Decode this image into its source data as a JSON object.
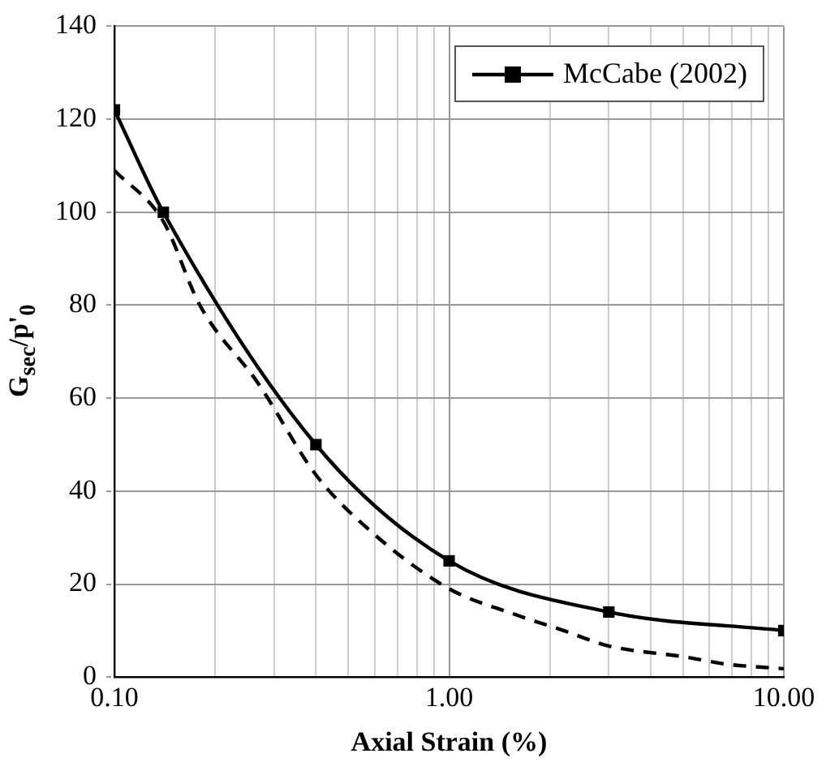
{
  "chart_data": {
    "type": "line",
    "xlabel": "Axial Strain (%)",
    "ylabel": "G$_{sec}$/p'$_{0}$",
    "log": "x",
    "grid": true,
    "legend": "top right",
    "xlim": [
      0.1,
      10
    ],
    "xticks": [
      {
        "value": 0.1,
        "label": "0.10"
      },
      {
        "value": 0.2,
        "label": null
      },
      {
        "value": 0.3,
        "label": null
      },
      {
        "value": 0.4,
        "label": null
      },
      {
        "value": 0.5,
        "label": null
      },
      {
        "value": 0.6,
        "label": null
      },
      {
        "value": 0.7,
        "label": null
      },
      {
        "value": 0.8,
        "label": null
      },
      {
        "value": 0.9,
        "label": null
      },
      {
        "value": 1,
        "label": "1.00"
      },
      {
        "value": 2,
        "label": null
      },
      {
        "value": 3,
        "label": null
      },
      {
        "value": 4,
        "label": null
      },
      {
        "value": 5,
        "label": null
      },
      {
        "value": 6,
        "label": null
      },
      {
        "value": 7,
        "label": null
      },
      {
        "value": 8,
        "label": null
      },
      {
        "value": 9,
        "label": null
      },
      {
        "value": 10,
        "label": "10.00"
      }
    ],
    "ylim": [
      0,
      140
    ],
    "yticks": [
      0,
      20,
      40,
      60,
      80,
      100,
      120,
      140
    ],
    "series": [
      {
        "color": "#000000",
        "line_style": "dashed",
        "marker": "none",
        "x": [
          0.1,
          0.14,
          0.18,
          0.27,
          0.4,
          0.57,
          1,
          1.57,
          2.2,
          3,
          5.1,
          6.7,
          10
        ],
        "values": [
          109,
          98,
          80,
          63,
          43.5,
          32,
          19,
          13.5,
          10,
          6.7,
          4.3,
          2.8,
          1.8
        ]
      },
      {
        "name": "McCabe (2002)",
        "color": "#000000",
        "line_style": "solid",
        "marker": "square",
        "x": [
          0.1,
          0.14,
          0.4,
          1,
          3,
          10
        ],
        "values": [
          122,
          100,
          50,
          25,
          14,
          10
        ]
      }
    ]
  }
}
